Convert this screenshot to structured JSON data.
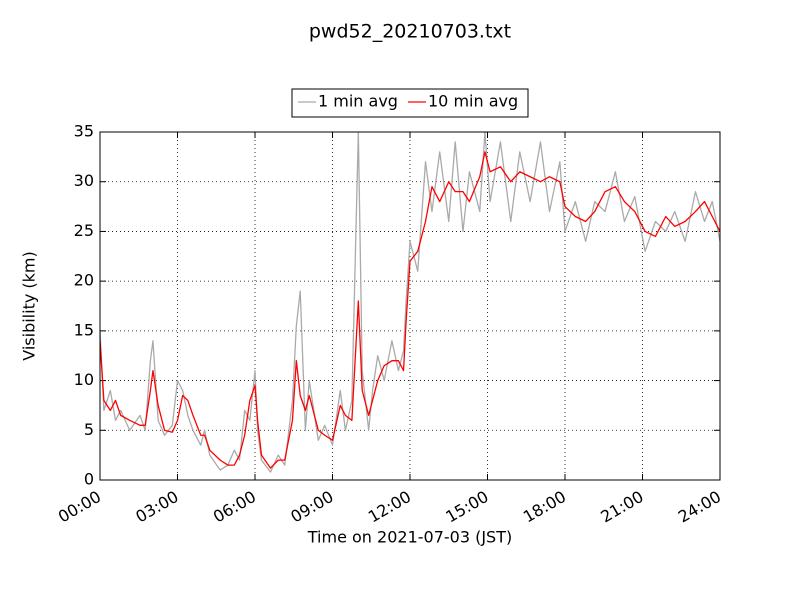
{
  "chart_data": {
    "type": "line",
    "title": "pwd52_20210703.txt",
    "xlabel": "Time on 2021-07-03 (JST)",
    "ylabel": "Visibility (km)",
    "x": [
      0,
      0.15,
      0.4,
      0.6,
      0.8,
      1.15,
      1.55,
      1.75,
      1.95,
      2.05,
      2.25,
      2.5,
      2.8,
      3,
      3.2,
      3.4,
      3.6,
      3.9,
      4.05,
      4.25,
      4.65,
      4.95,
      5.2,
      5.4,
      5.6,
      5.8,
      6,
      6.1,
      6.25,
      6.6,
      6.9,
      7.15,
      7.45,
      7.6,
      7.75,
      7.95,
      8.1,
      8.45,
      8.7,
      9,
      9.3,
      9.5,
      9.75,
      10,
      10.15,
      10.4,
      10.55,
      10.75,
      11,
      11.3,
      11.55,
      11.75,
      11.85,
      12,
      12.3,
      12.6,
      12.85,
      13.15,
      13.5,
      13.75,
      14.05,
      14.3,
      14.7,
      14.9,
      15.1,
      15.5,
      15.9,
      16.25,
      16.65,
      17.05,
      17.4,
      17.8,
      18,
      18.4,
      18.8,
      19.15,
      19.55,
      19.95,
      20.3,
      20.7,
      21.1,
      21.5,
      21.9,
      22.25,
      22.65,
      23.05,
      23.4,
      23.7,
      24
    ],
    "series": [
      {
        "name": "1 min avg",
        "color": "#aaaaaa",
        "values": [
          15,
          7,
          9,
          6,
          7,
          5,
          6.5,
          5,
          12,
          14,
          6,
          4.5,
          5.5,
          10,
          9,
          6.5,
          5,
          3.5,
          5,
          2.5,
          1,
          1.5,
          3,
          2,
          7,
          6,
          11,
          5,
          2,
          0.8,
          2.5,
          1.5,
          8,
          15.5,
          19,
          5,
          10,
          4,
          5.5,
          3.5,
          9,
          5,
          8,
          35,
          11,
          5,
          9,
          12.5,
          10,
          14,
          11,
          13,
          18,
          24,
          21,
          32,
          27,
          33,
          26,
          34,
          25,
          31,
          27,
          35,
          28,
          34,
          26,
          33,
          28,
          34,
          27,
          32,
          25,
          28,
          24,
          28,
          27,
          31,
          26,
          28.5,
          23,
          26,
          25,
          27,
          24,
          29,
          26,
          28,
          24
        ]
      },
      {
        "name": "10 min avg",
        "color": "#ff0000",
        "values": [
          14,
          8,
          7,
          8,
          6.5,
          6,
          5.5,
          5.5,
          9,
          11,
          7.5,
          5,
          4.8,
          6,
          8.5,
          8,
          6.5,
          4.5,
          4.5,
          3,
          2,
          1.5,
          1.5,
          2.5,
          4.5,
          8,
          9.5,
          6,
          2.5,
          1.2,
          2,
          2,
          6,
          12,
          8.5,
          7,
          8.5,
          5,
          4.5,
          4,
          7.5,
          6.5,
          6,
          18,
          9,
          6.5,
          8,
          10,
          11.5,
          12,
          12,
          11,
          16,
          22,
          23,
          26,
          29.5,
          28,
          30,
          29,
          29,
          28,
          30.5,
          33,
          31,
          31.5,
          30,
          31,
          30.5,
          30,
          30.5,
          30,
          27.5,
          26.5,
          26,
          27,
          29,
          29.5,
          28,
          27,
          25,
          24.5,
          26.5,
          25.5,
          26,
          27,
          28,
          26.5,
          25
        ]
      }
    ],
    "xlim": [
      0,
      24
    ],
    "xticks": [
      {
        "value": 0,
        "label": "00:00"
      },
      {
        "value": 3,
        "label": "03:00"
      },
      {
        "value": 6,
        "label": "06:00"
      },
      {
        "value": 9,
        "label": "09:00"
      },
      {
        "value": 12,
        "label": "12:00"
      },
      {
        "value": 15,
        "label": "15:00"
      },
      {
        "value": 18,
        "label": "18:00"
      },
      {
        "value": 21,
        "label": "21:00"
      },
      {
        "value": 24,
        "label": "24:00"
      }
    ],
    "ylim": [
      0,
      35
    ],
    "yticks": [
      0,
      5,
      10,
      15,
      20,
      25,
      30,
      35
    ],
    "grid": true
  }
}
